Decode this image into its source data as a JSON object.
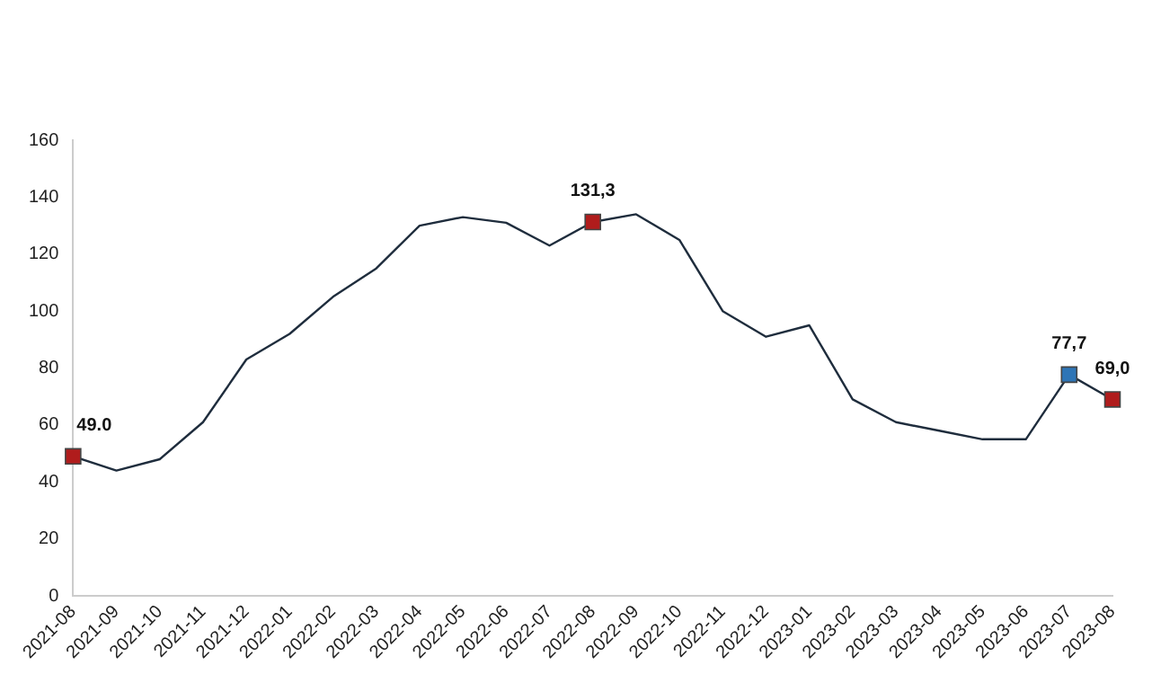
{
  "chart_data": {
    "type": "line",
    "categories": [
      "2021-08",
      "2021-09",
      "2021-10",
      "2021-11",
      "2021-12",
      "2022-01",
      "2022-02",
      "2022-03",
      "2022-04",
      "2022-05",
      "2022-06",
      "2022-07",
      "2022-08",
      "2022-09",
      "2022-10",
      "2022-11",
      "2022-12",
      "2023-01",
      "2023-02",
      "2023-03",
      "2023-04",
      "2023-05",
      "2023-06",
      "2023-07",
      "2023-08"
    ],
    "series": [
      {
        "color": "#1f2d3d",
        "marker": "none",
        "values": [
          49.0,
          44,
          48,
          61,
          83,
          92,
          105,
          115,
          130,
          133,
          131,
          123,
          131.3,
          134,
          125,
          100,
          91,
          95,
          69,
          61,
          58,
          55,
          55,
          77.7,
          69.0
        ]
      },
      {
        "type": "scatter",
        "marker": "square",
        "values": [
          49.0,
          null,
          null,
          null,
          null,
          null,
          null,
          null,
          null,
          null,
          null,
          null,
          131.3,
          null,
          null,
          null,
          null,
          null,
          null,
          null,
          null,
          null,
          null,
          77.7,
          69.0
        ],
        "colors": [
          "#b01c1c",
          null,
          null,
          null,
          null,
          null,
          null,
          null,
          null,
          null,
          null,
          null,
          "#b01c1c",
          null,
          null,
          null,
          null,
          null,
          null,
          null,
          null,
          null,
          null,
          "#2e75b6",
          "#b01c1c"
        ],
        "value_labels": [
          "49.0",
          null,
          null,
          null,
          null,
          null,
          null,
          null,
          null,
          null,
          null,
          null,
          "131,3",
          null,
          null,
          null,
          null,
          null,
          null,
          null,
          null,
          null,
          null,
          "77,7",
          "69,0"
        ]
      }
    ],
    "ylim": [
      0,
      160
    ],
    "yticks": [
      0,
      20,
      40,
      60,
      80,
      100,
      120,
      140,
      160
    ],
    "grid": false,
    "legend": false
  }
}
